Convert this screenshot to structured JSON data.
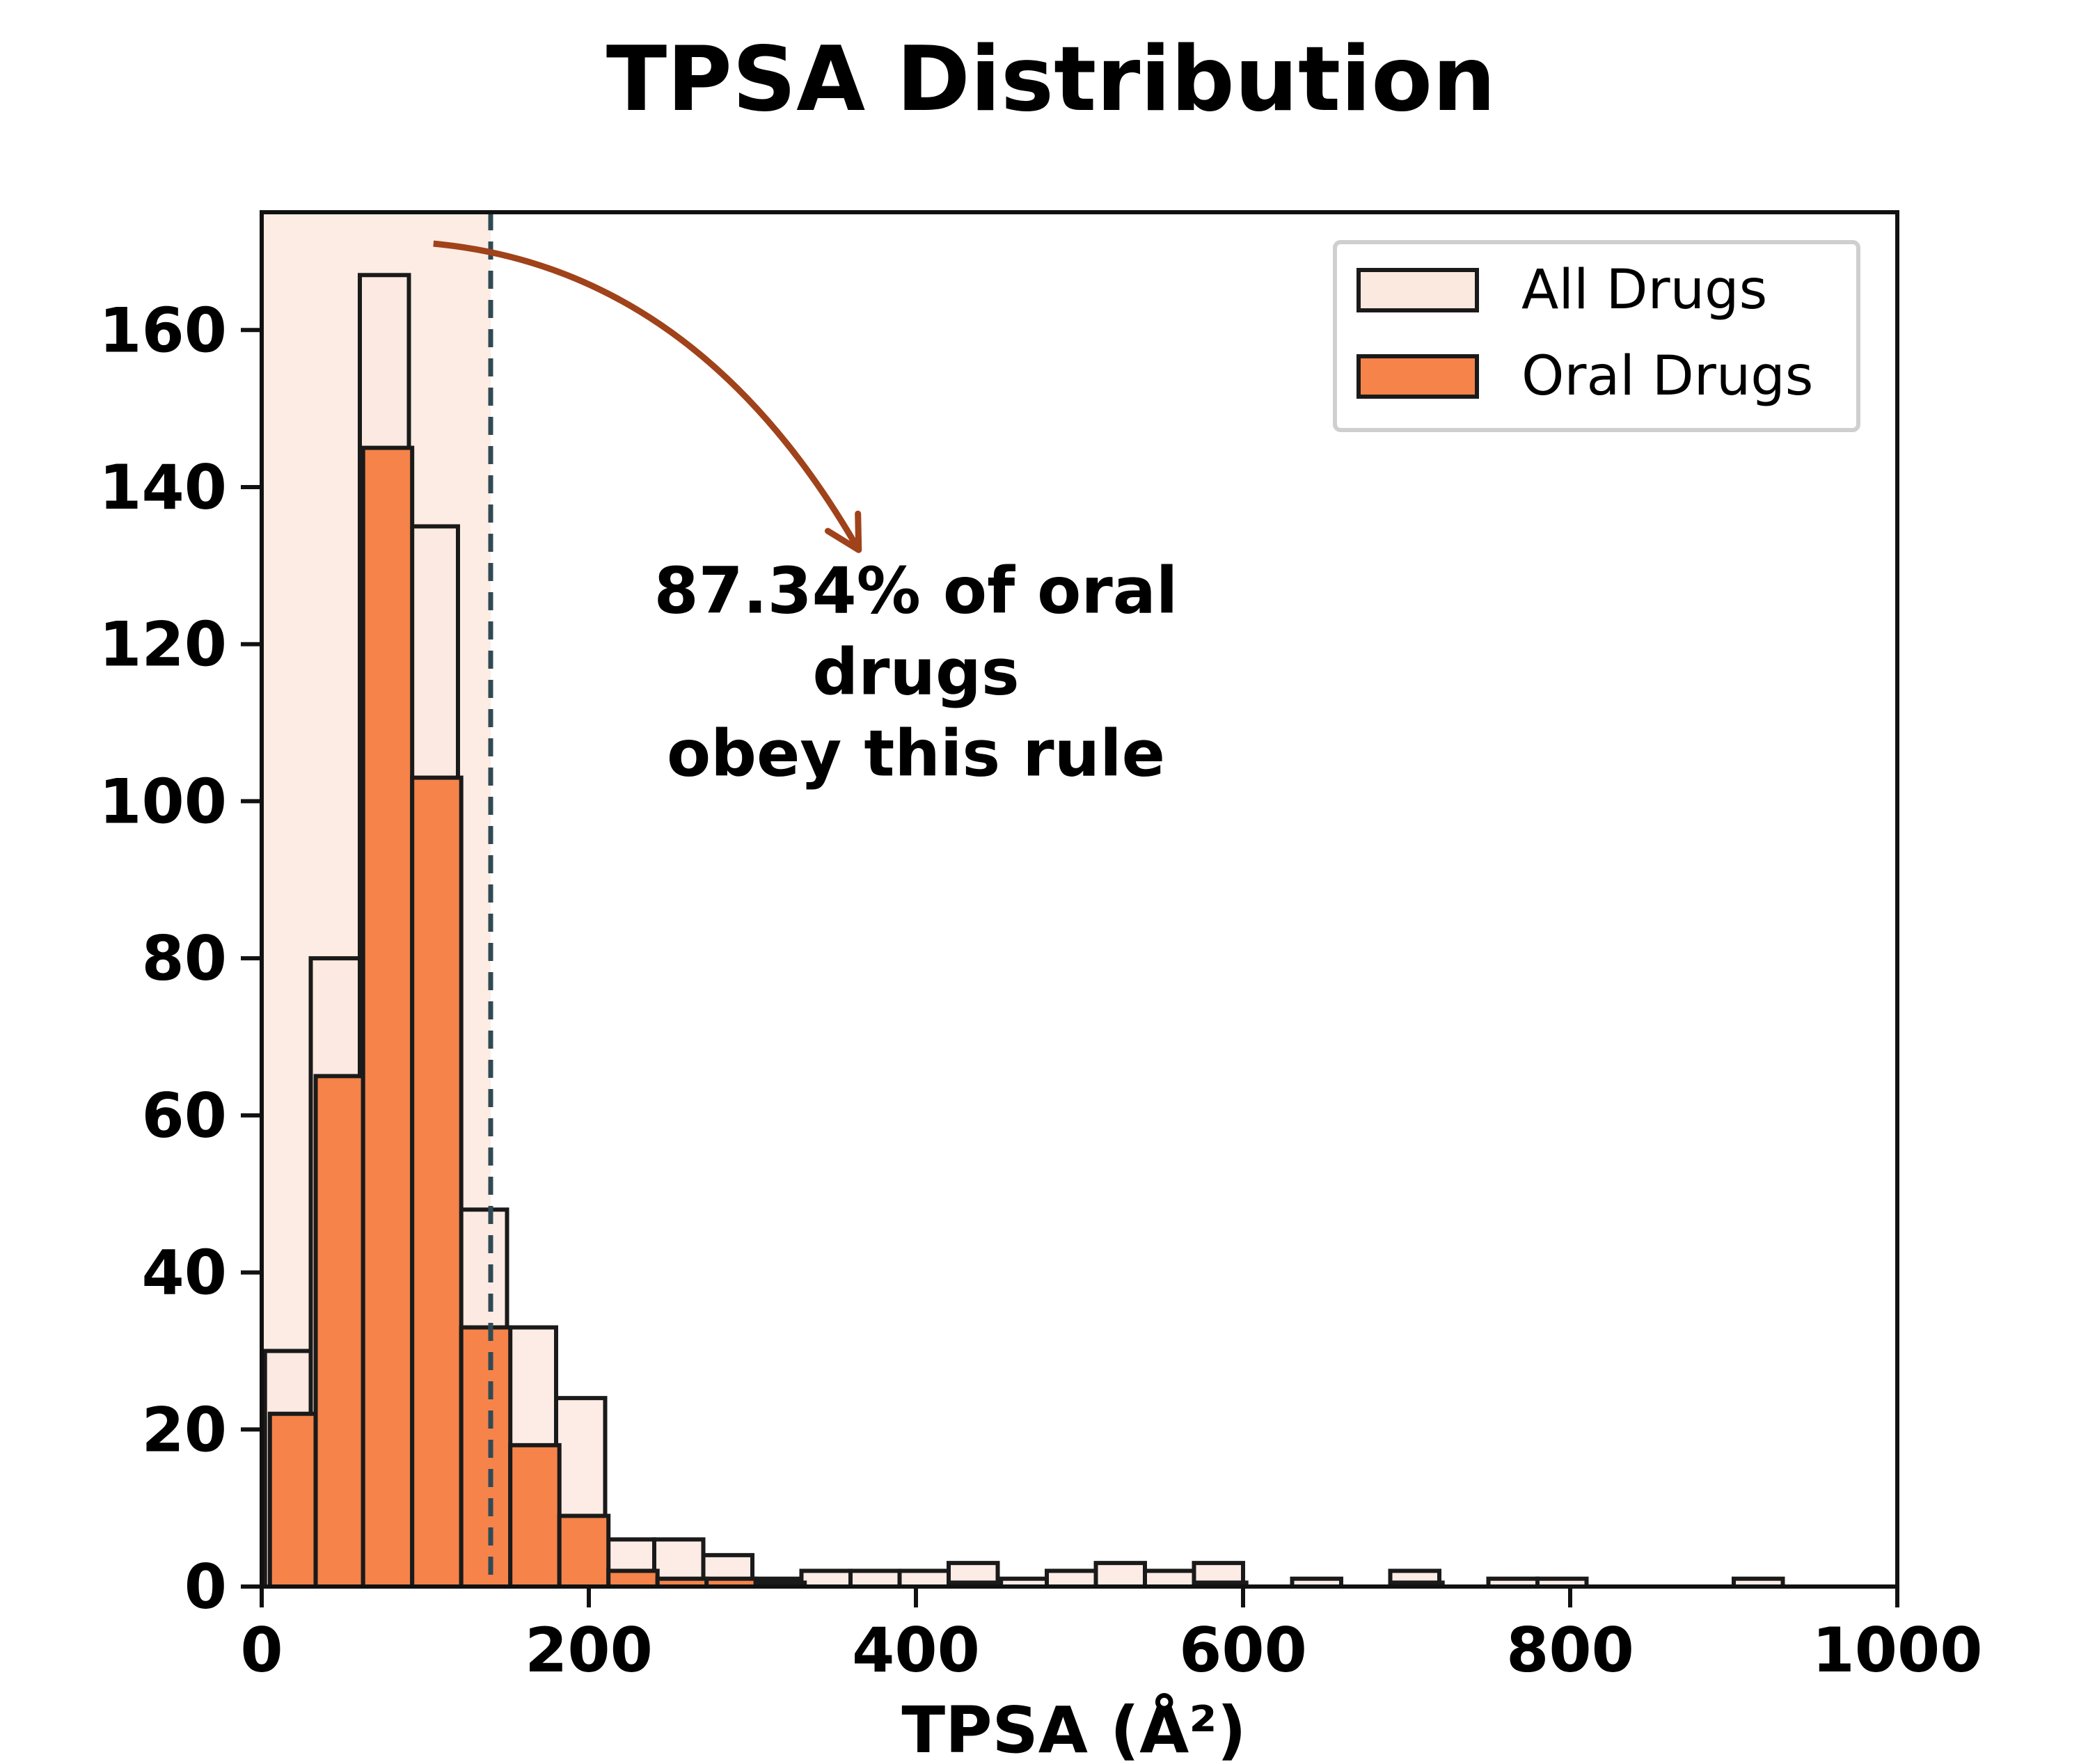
{
  "chart_data": {
    "type": "bar",
    "title": "TPSA Distribution",
    "xlabel": "TPSA (Å²)",
    "ylabel": "",
    "xlim": [
      0,
      1000
    ],
    "ylim": [
      0,
      175
    ],
    "xticks": [
      0,
      200,
      400,
      600,
      800,
      1000
    ],
    "yticks": [
      0,
      20,
      40,
      60,
      80,
      100,
      120,
      140,
      160
    ],
    "grid": false,
    "legend_position": "top-right",
    "threshold": 140,
    "shaded_region": [
      0,
      140
    ],
    "annotation": {
      "lines": [
        "87.34% of oral",
        "drugs",
        "obey this rule"
      ],
      "arrow_from": [
        105,
        171
      ],
      "arrow_to": [
        365,
        132
      ],
      "text_at": [
        400,
        124
      ]
    },
    "series": [
      {
        "name": "All Drugs",
        "color": "#fbe9e0",
        "bins": [
          {
            "start": 2,
            "end": 30,
            "count": 30
          },
          {
            "start": 30,
            "end": 60,
            "count": 80
          },
          {
            "start": 60,
            "end": 90,
            "count": 167
          },
          {
            "start": 90,
            "end": 120,
            "count": 135
          },
          {
            "start": 120,
            "end": 150,
            "count": 48
          },
          {
            "start": 150,
            "end": 180,
            "count": 33
          },
          {
            "start": 180,
            "end": 210,
            "count": 24
          },
          {
            "start": 210,
            "end": 240,
            "count": 6
          },
          {
            "start": 240,
            "end": 270,
            "count": 6
          },
          {
            "start": 270,
            "end": 300,
            "count": 4
          },
          {
            "start": 300,
            "end": 330,
            "count": 1
          },
          {
            "start": 330,
            "end": 360,
            "count": 2
          },
          {
            "start": 360,
            "end": 390,
            "count": 2
          },
          {
            "start": 390,
            "end": 420,
            "count": 2
          },
          {
            "start": 420,
            "end": 450,
            "count": 3
          },
          {
            "start": 450,
            "end": 480,
            "count": 1
          },
          {
            "start": 480,
            "end": 510,
            "count": 2
          },
          {
            "start": 510,
            "end": 540,
            "count": 3
          },
          {
            "start": 540,
            "end": 570,
            "count": 2
          },
          {
            "start": 570,
            "end": 600,
            "count": 3
          },
          {
            "start": 630,
            "end": 660,
            "count": 1
          },
          {
            "start": 690,
            "end": 720,
            "count": 2
          },
          {
            "start": 750,
            "end": 780,
            "count": 1
          },
          {
            "start": 780,
            "end": 810,
            "count": 1
          },
          {
            "start": 900,
            "end": 930,
            "count": 1
          }
        ]
      },
      {
        "name": "Oral Drugs",
        "color": "#f5834a",
        "bins": [
          {
            "start": 5,
            "end": 33,
            "count": 22
          },
          {
            "start": 33,
            "end": 62,
            "count": 65
          },
          {
            "start": 62,
            "end": 92,
            "count": 145
          },
          {
            "start": 92,
            "end": 122,
            "count": 103
          },
          {
            "start": 122,
            "end": 152,
            "count": 33
          },
          {
            "start": 152,
            "end": 182,
            "count": 18
          },
          {
            "start": 182,
            "end": 212,
            "count": 9
          },
          {
            "start": 212,
            "end": 242,
            "count": 2
          },
          {
            "start": 242,
            "end": 272,
            "count": 1
          },
          {
            "start": 272,
            "end": 302,
            "count": 1
          },
          {
            "start": 302,
            "end": 332,
            "count": 0.5
          },
          {
            "start": 422,
            "end": 452,
            "count": 0.5
          },
          {
            "start": 572,
            "end": 602,
            "count": 0.5
          },
          {
            "start": 692,
            "end": 722,
            "count": 0.5
          }
        ]
      }
    ]
  }
}
